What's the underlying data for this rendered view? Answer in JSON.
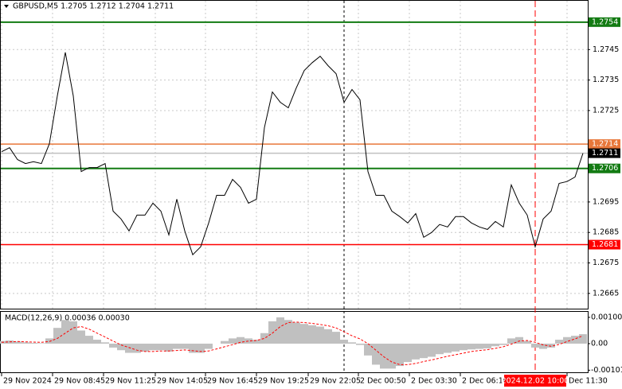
{
  "chart_data": [
    {
      "type": "line",
      "title": "GBPUSD,M5  1.2705 1.2712 1.2704 1.2711",
      "series": [
        {
          "color": "#000000",
          "values": [
            1.27115,
            1.27128,
            1.27089,
            1.27076,
            1.27082,
            1.27076,
            1.27141,
            1.27298,
            1.27441,
            1.27298,
            1.2705,
            1.27063,
            1.27063,
            1.27076,
            1.2692,
            1.26894,
            1.26855,
            1.26907,
            1.26907,
            1.26946,
            1.2692,
            1.26842,
            1.26959,
            1.26855,
            1.26777,
            1.26803,
            1.26881,
            1.26972,
            1.26972,
            1.27024,
            1.26998,
            1.26946,
            1.26959,
            1.27194,
            1.27311,
            1.27277,
            1.27259,
            1.27324,
            1.27381,
            1.27407,
            1.27428,
            1.27397,
            1.27371,
            1.27277,
            1.27319,
            1.27285,
            1.2705,
            1.26972,
            1.26972,
            1.2692,
            1.26902,
            1.26881,
            1.26912,
            1.26834,
            1.2685,
            1.26876,
            1.26868,
            1.26902,
            1.26902,
            1.26881,
            1.26868,
            1.2686,
            1.26886,
            1.26868,
            1.27006,
            1.26946,
            1.26907,
            1.26803,
            1.26894,
            1.2692,
            1.27011,
            1.27017,
            1.27032,
            1.2711
          ]
        }
      ],
      "xlim": [
        0,
        73.6
      ],
      "ylim": [
        1.266,
        1.2761
      ],
      "yticks": [
        1.2665,
        1.2675,
        1.2685,
        1.2695,
        1.2725,
        1.2735,
        1.2745
      ],
      "xticks": [
        {
          "value": 0,
          "label": "29 Nov 2024"
        },
        {
          "value": 6.4,
          "label": "29 Nov 08:45"
        },
        {
          "value": 12.8,
          "label": "29 Nov 11:25"
        },
        {
          "value": 19.3,
          "label": "29 Nov 14:05"
        },
        {
          "value": 25.6,
          "label": "29 Nov 16:45"
        },
        {
          "value": 32,
          "label": "29 Nov 19:25"
        },
        {
          "value": 38.5,
          "label": "29 Nov 22:05"
        },
        {
          "value": 44.8,
          "label": "2 Dec 00:50"
        },
        {
          "value": 51.2,
          "label": "2 Dec 03:30"
        },
        {
          "value": 57.6,
          "label": "2 Dec 06:10"
        },
        {
          "value": 71,
          "label": "Dec 11:30"
        }
      ],
      "levels": [
        {
          "value": 1.2754,
          "color": "#137b13"
        },
        {
          "value": 1.2714,
          "color": "#e8773a"
        },
        {
          "value": 1.2711,
          "color": "#000000"
        },
        {
          "value": 1.2706,
          "color": "#137b13"
        },
        {
          "value": 1.2681,
          "color": "#ff0000"
        }
      ],
      "vline": 43,
      "cursor": {
        "x": 67,
        "label": "2024.12.02 10:00",
        "color": "#ff0000"
      },
      "grid": true
    },
    {
      "type": "macd",
      "title": "MACD(12,26,9) 0.00036 0.00030",
      "series": [
        {
          "type": "bar",
          "color": "#c0c0c0",
          "values": [
            0.0001,
            0.00012,
            8e-05,
            5e-05,
            3e-05,
            2e-05,
            0.0002,
            0.0006,
            0.0009,
            0.00085,
            0.0005,
            0.0003,
            0.00015,
            5e-05,
            -0.00015,
            -0.00025,
            -0.00035,
            -0.00035,
            -0.0003,
            -0.00025,
            -0.00025,
            -0.0003,
            -0.0002,
            -0.0002,
            -0.00035,
            -0.00035,
            -0.0002,
            0,
            0.0001,
            0.0002,
            0.00025,
            0.0002,
            0.00015,
            0.0004,
            0.00085,
            0.001,
            0.0009,
            0.0008,
            0.00075,
            0.0007,
            0.00065,
            0.00055,
            0.00045,
            0.00015,
            5e-05,
            -5e-05,
            -0.00045,
            -0.0008,
            -0.00095,
            -0.00095,
            -0.00085,
            -0.0007,
            -0.0006,
            -0.00055,
            -0.0005,
            -0.0004,
            -0.00035,
            -0.0003,
            -0.00025,
            -0.00022,
            -0.0002,
            -0.00018,
            -0.0001,
            -5e-05,
            0.0002,
            0.00025,
            0.0001,
            -0.00015,
            -0.0002,
            -0.00015,
            0.00015,
            0.00025,
            0.0003,
            0.00036
          ]
        },
        {
          "type": "line",
          "color": "#ff0000",
          "values": [
            5e-05,
            7e-05,
            8e-05,
            7e-05,
            6e-05,
            5e-05,
            8e-05,
            0.0002,
            0.0004,
            0.0006,
            0.00065,
            0.00055,
            0.0004,
            0.00025,
            0.0001,
            -5e-05,
            -0.00015,
            -0.00025,
            -0.0003,
            -0.0003,
            -0.00028,
            -0.00028,
            -0.00026,
            -0.00024,
            -0.00027,
            -0.0003,
            -0.00028,
            -0.0002,
            -0.00012,
            -4e-05,
            5e-05,
            0.0001,
            0.00012,
            0.0002,
            0.0004,
            0.00065,
            0.0008,
            0.00082,
            0.0008,
            0.00077,
            0.00073,
            0.00068,
            0.0006,
            0.00045,
            0.0003,
            0.00018,
            0,
            -0.00025,
            -0.0005,
            -0.0007,
            -0.0008,
            -0.0008,
            -0.00075,
            -0.00068,
            -0.00062,
            -0.00055,
            -0.00048,
            -0.00042,
            -0.00036,
            -0.0003,
            -0.00026,
            -0.00023,
            -0.00018,
            -0.00012,
            -2e-05,
            0.0001,
            0.00012,
            5e-05,
            -5e-05,
            -0.0001,
            -3e-05,
            8e-05,
            0.00018,
            0.0003
          ]
        }
      ],
      "ylim": [
        -0.00109,
        0.00121
      ],
      "yticks": [
        {
          "value": 0.001,
          "label": "0.00100"
        },
        {
          "value": 0,
          "label": "0.00"
        },
        {
          "value": -0.00101,
          "label": "-0.00101"
        }
      ]
    }
  ]
}
